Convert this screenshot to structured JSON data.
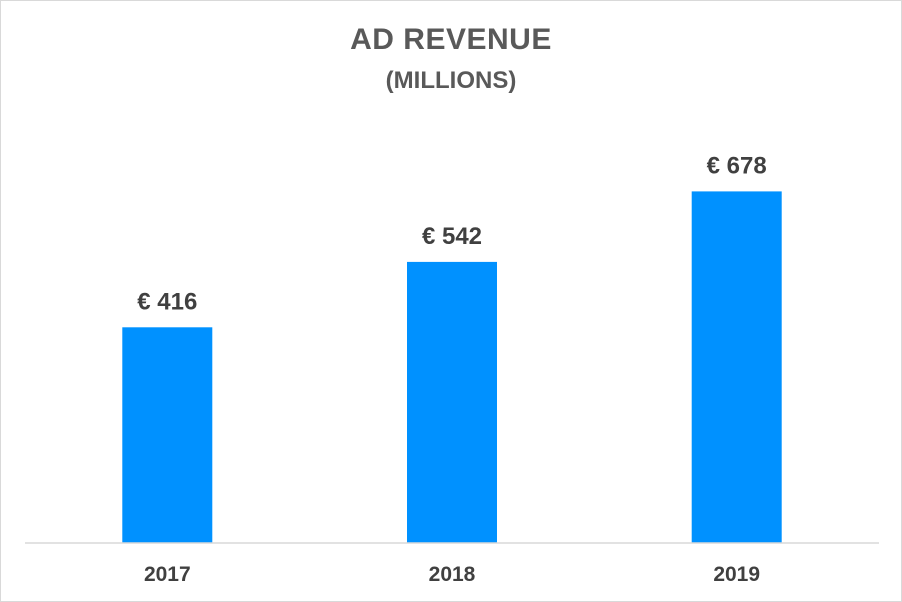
{
  "chart_data": {
    "type": "bar",
    "title": "AD REVENUE",
    "subtitle": "(MILLIONS)",
    "categories": [
      "2017",
      "2018",
      "2019"
    ],
    "values": [
      416,
      542,
      678
    ],
    "data_labels": [
      "€ 416",
      "€ 542",
      "€ 678"
    ],
    "xlabel": "",
    "ylabel": "",
    "ylim": [
      0,
      800
    ],
    "grid": false,
    "legend": "none",
    "bar_color": "#0091FF",
    "axis_color": "#d9d9d9",
    "text_color": "#404040",
    "title_color": "#595959"
  }
}
